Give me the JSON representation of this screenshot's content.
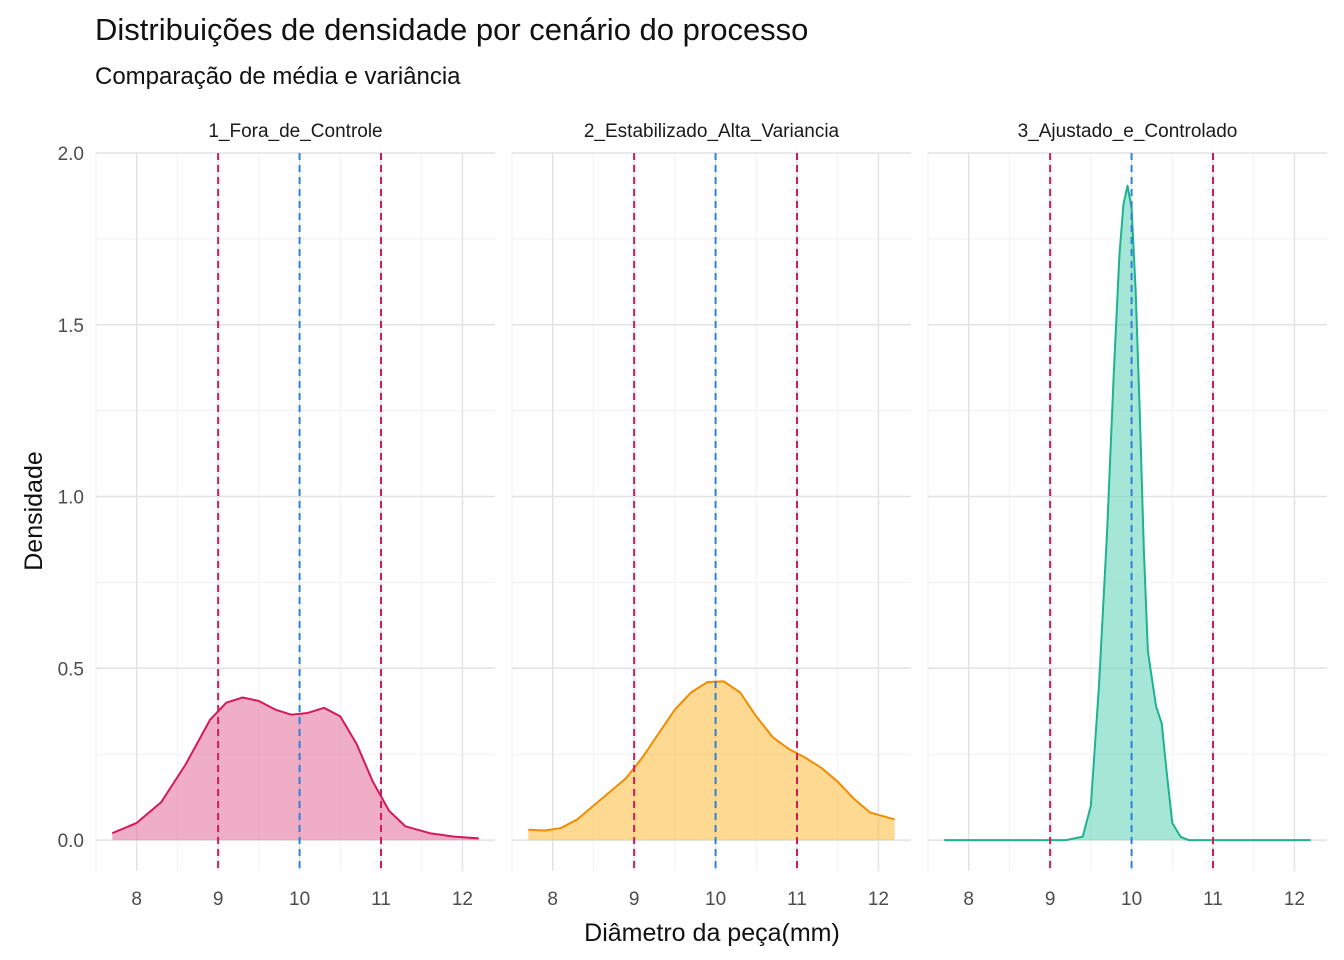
{
  "chart_data": {
    "type": "area",
    "title": "Distribuições de densidade por cenário do processo",
    "subtitle": "Comparação de média e variância",
    "xlabel": "Diâmetro da peça(mm)",
    "ylabel": "Densidade",
    "xlim": [
      7.5,
      12.4
    ],
    "ylim": [
      -0.09,
      2.0
    ],
    "x_ticks": [
      8,
      9,
      10,
      11,
      12
    ],
    "y_ticks": [
      0.0,
      0.5,
      1.0,
      1.5,
      2.0
    ],
    "y_tick_labels": [
      "0.0",
      "0.5",
      "1.0",
      "1.5",
      "2.0"
    ],
    "grid": true,
    "reference_lines": {
      "target_mean": 10,
      "spec_limits": [
        9,
        11
      ],
      "mean_color": "#2b83d8",
      "limit_color": "#d6195c"
    },
    "panels": [
      {
        "name": "1_Fora_de_Controle",
        "line_color": "#d6195c",
        "fill_color": "#e57aa3",
        "points": [
          [
            7.7,
            0.02
          ],
          [
            8.0,
            0.05
          ],
          [
            8.3,
            0.11
          ],
          [
            8.6,
            0.22
          ],
          [
            8.9,
            0.35
          ],
          [
            9.1,
            0.4
          ],
          [
            9.3,
            0.415
          ],
          [
            9.5,
            0.405
          ],
          [
            9.7,
            0.38
          ],
          [
            9.9,
            0.365
          ],
          [
            10.1,
            0.37
          ],
          [
            10.3,
            0.385
          ],
          [
            10.5,
            0.36
          ],
          [
            10.7,
            0.28
          ],
          [
            10.9,
            0.17
          ],
          [
            11.1,
            0.085
          ],
          [
            11.3,
            0.04
          ],
          [
            11.6,
            0.02
          ],
          [
            11.9,
            0.01
          ],
          [
            12.2,
            0.005
          ]
        ]
      },
      {
        "name": "2_Estabilizado_Alta_Variancia",
        "line_color": "#f08c00",
        "fill_color": "#fcc24f",
        "points": [
          [
            7.7,
            0.03
          ],
          [
            7.9,
            0.028
          ],
          [
            8.1,
            0.035
          ],
          [
            8.3,
            0.06
          ],
          [
            8.5,
            0.1
          ],
          [
            8.7,
            0.14
          ],
          [
            8.9,
            0.18
          ],
          [
            9.1,
            0.24
          ],
          [
            9.3,
            0.31
          ],
          [
            9.5,
            0.38
          ],
          [
            9.7,
            0.43
          ],
          [
            9.9,
            0.46
          ],
          [
            10.1,
            0.462
          ],
          [
            10.3,
            0.43
          ],
          [
            10.5,
            0.36
          ],
          [
            10.7,
            0.3
          ],
          [
            10.9,
            0.265
          ],
          [
            11.1,
            0.24
          ],
          [
            11.3,
            0.21
          ],
          [
            11.5,
            0.17
          ],
          [
            11.7,
            0.12
          ],
          [
            11.9,
            0.08
          ],
          [
            12.2,
            0.06
          ]
        ]
      },
      {
        "name": "3_Ajustado_e_Controlado",
        "line_color": "#1db391",
        "fill_color": "#6fd6bf",
        "points": [
          [
            7.7,
            0.0
          ],
          [
            9.2,
            0.0
          ],
          [
            9.4,
            0.01
          ],
          [
            9.5,
            0.1
          ],
          [
            9.6,
            0.45
          ],
          [
            9.7,
            0.9
          ],
          [
            9.78,
            1.35
          ],
          [
            9.85,
            1.7
          ],
          [
            9.9,
            1.85
          ],
          [
            9.95,
            1.905
          ],
          [
            10.0,
            1.84
          ],
          [
            10.05,
            1.6
          ],
          [
            10.1,
            1.25
          ],
          [
            10.15,
            0.85
          ],
          [
            10.2,
            0.55
          ],
          [
            10.3,
            0.39
          ],
          [
            10.37,
            0.34
          ],
          [
            10.43,
            0.2
          ],
          [
            10.5,
            0.05
          ],
          [
            10.6,
            0.01
          ],
          [
            10.7,
            0.0
          ],
          [
            12.2,
            0.0
          ]
        ]
      }
    ]
  }
}
